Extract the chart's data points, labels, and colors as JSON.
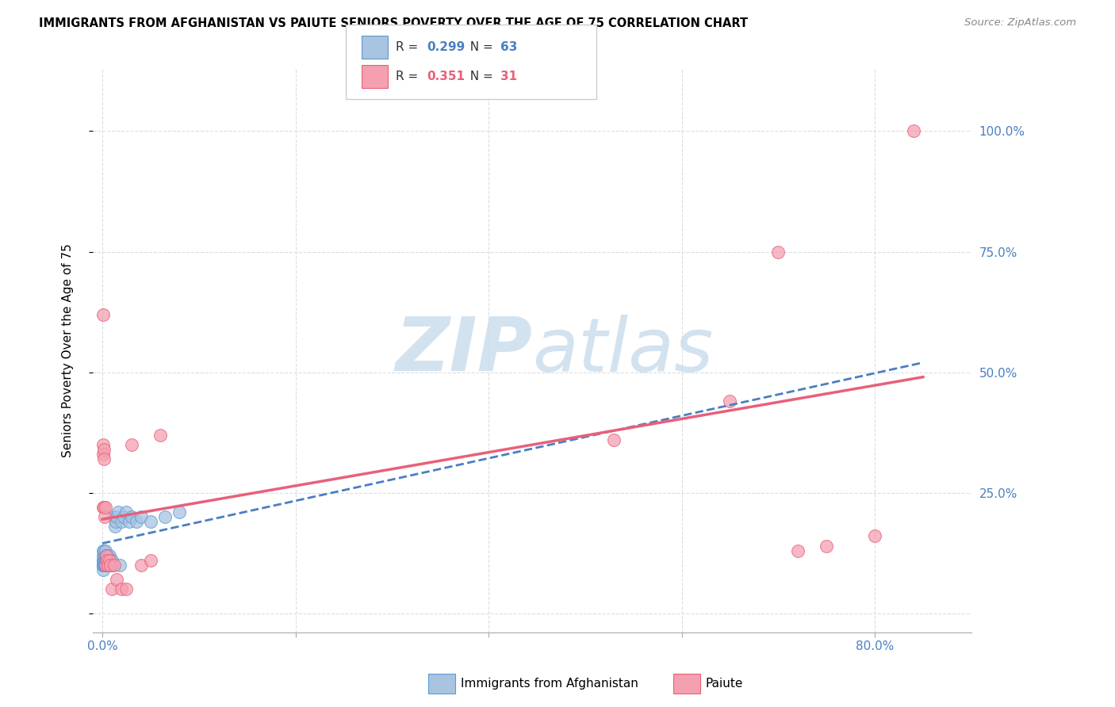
{
  "title": "IMMIGRANTS FROM AFGHANISTAN VS PAIUTE SENIORS POVERTY OVER THE AGE OF 75 CORRELATION CHART",
  "source": "Source: ZipAtlas.com",
  "ylabel": "Seniors Poverty Over the Age of 75",
  "x_tick_positions": [
    0.0,
    0.2,
    0.4,
    0.6,
    0.8
  ],
  "x_tick_labels": [
    "0.0%",
    "",
    "",
    "",
    "80.0%"
  ],
  "y_tick_positions": [
    0.0,
    0.25,
    0.5,
    0.75,
    1.0
  ],
  "y_tick_labels": [
    "",
    "25.0%",
    "50.0%",
    "75.0%",
    "100.0%"
  ],
  "xlim": [
    -0.01,
    0.9
  ],
  "ylim": [
    -0.04,
    1.13
  ],
  "blue_R": "0.299",
  "blue_N": "63",
  "pink_R": "0.351",
  "pink_N": "31",
  "blue_fill_color": "#a8c4e0",
  "pink_fill_color": "#f4a0b0",
  "blue_edge_color": "#5b9bd5",
  "pink_edge_color": "#e8607a",
  "blue_line_color": "#4a7fc1",
  "pink_line_color": "#e8607a",
  "axis_tick_color": "#4a7fc1",
  "watermark_color": "#ccdded",
  "grid_color": "#dddddd",
  "legend_label_blue": "Immigrants from Afghanistan",
  "legend_label_pink": "Paiute",
  "blue_scatter_x": [
    0.0005,
    0.0006,
    0.0007,
    0.0008,
    0.0009,
    0.001,
    0.001,
    0.001,
    0.001,
    0.001,
    0.0015,
    0.0015,
    0.002,
    0.002,
    0.002,
    0.002,
    0.002,
    0.002,
    0.0025,
    0.0025,
    0.003,
    0.003,
    0.003,
    0.003,
    0.003,
    0.0035,
    0.004,
    0.004,
    0.004,
    0.004,
    0.005,
    0.005,
    0.005,
    0.005,
    0.006,
    0.006,
    0.006,
    0.007,
    0.007,
    0.007,
    0.008,
    0.008,
    0.009,
    0.009,
    0.01,
    0.01,
    0.011,
    0.012,
    0.013,
    0.014,
    0.015,
    0.016,
    0.018,
    0.02,
    0.022,
    0.025,
    0.028,
    0.03,
    0.035,
    0.04,
    0.05,
    0.065,
    0.08
  ],
  "blue_scatter_y": [
    0.1,
    0.11,
    0.1,
    0.1,
    0.09,
    0.1,
    0.11,
    0.12,
    0.13,
    0.1,
    0.1,
    0.11,
    0.1,
    0.1,
    0.11,
    0.12,
    0.13,
    0.1,
    0.1,
    0.11,
    0.1,
    0.11,
    0.12,
    0.13,
    0.1,
    0.1,
    0.1,
    0.11,
    0.12,
    0.1,
    0.1,
    0.11,
    0.12,
    0.1,
    0.1,
    0.11,
    0.12,
    0.1,
    0.11,
    0.12,
    0.1,
    0.11,
    0.1,
    0.11,
    0.1,
    0.11,
    0.1,
    0.2,
    0.18,
    0.19,
    0.2,
    0.21,
    0.1,
    0.19,
    0.2,
    0.21,
    0.19,
    0.2,
    0.19,
    0.2,
    0.19,
    0.2,
    0.21
  ],
  "pink_scatter_x": [
    0.0005,
    0.0007,
    0.001,
    0.001,
    0.0015,
    0.002,
    0.002,
    0.0025,
    0.003,
    0.003,
    0.004,
    0.005,
    0.006,
    0.007,
    0.008,
    0.01,
    0.012,
    0.015,
    0.02,
    0.025,
    0.03,
    0.04,
    0.05,
    0.06,
    0.53,
    0.65,
    0.7,
    0.72,
    0.75,
    0.8,
    0.84
  ],
  "pink_scatter_y": [
    0.62,
    0.35,
    0.33,
    0.22,
    0.34,
    0.22,
    0.32,
    0.2,
    0.22,
    0.1,
    0.12,
    0.11,
    0.1,
    0.11,
    0.1,
    0.05,
    0.1,
    0.07,
    0.05,
    0.05,
    0.35,
    0.1,
    0.11,
    0.37,
    0.36,
    0.44,
    0.75,
    0.13,
    0.14,
    0.16,
    1.0
  ],
  "blue_line_x": [
    0.0,
    0.85
  ],
  "blue_line_y": [
    0.145,
    0.52
  ],
  "pink_line_x": [
    0.0,
    0.85
  ],
  "pink_line_y": [
    0.195,
    0.49
  ]
}
